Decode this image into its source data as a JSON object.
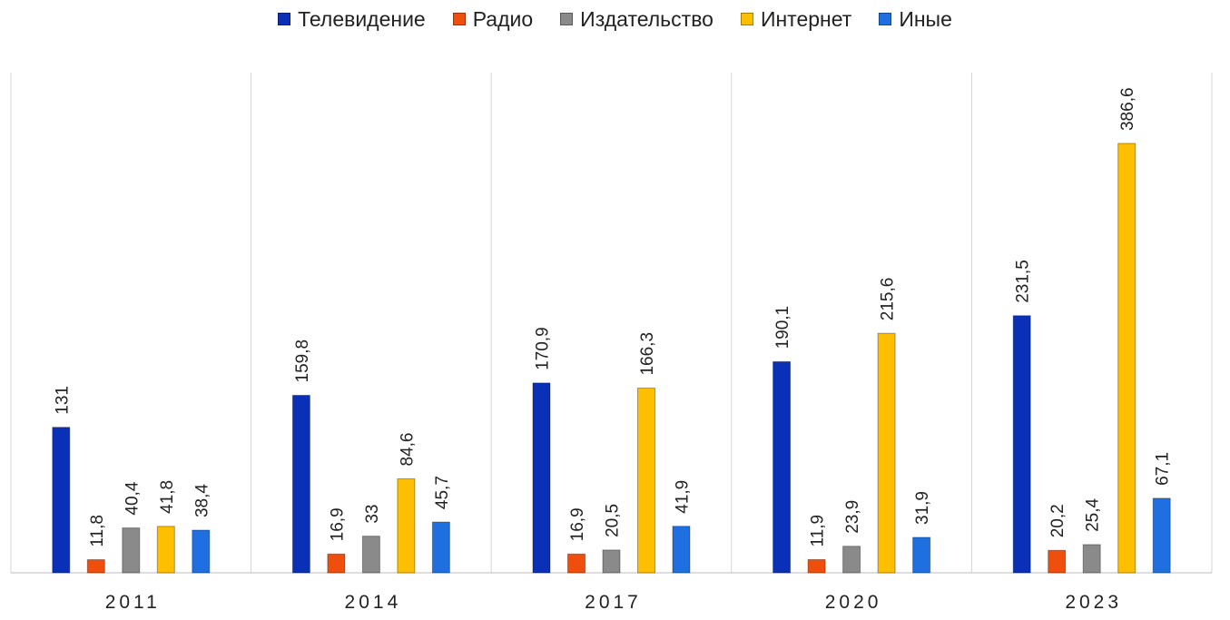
{
  "chart_data": {
    "type": "bar",
    "categories": [
      "2011",
      "2014",
      "2017",
      "2020",
      "2023"
    ],
    "series": [
      {
        "name": "Телевидение",
        "color": "#0b30b8",
        "values": [
          131,
          159.8,
          170.9,
          190.1,
          231.5
        ],
        "labels": [
          "131",
          "159,8",
          "170,9",
          "190,1",
          "231,5"
        ]
      },
      {
        "name": "Радио",
        "color": "#f04e0c",
        "values": [
          11.8,
          16.9,
          16.9,
          11.9,
          20.2
        ],
        "labels": [
          "11,8",
          "16,9",
          "16,9",
          "11,9",
          "20,2"
        ]
      },
      {
        "name": "Издательство",
        "color": "#8a8a8a",
        "values": [
          40.4,
          33,
          20.5,
          23.9,
          25.4
        ],
        "labels": [
          "40,4",
          "33",
          "20,5",
          "23,9",
          "25,4"
        ]
      },
      {
        "name": "Интернет",
        "color": "#fdbf00",
        "values": [
          41.8,
          84.6,
          166.3,
          215.6,
          386.6
        ],
        "labels": [
          "41,8",
          "84,6",
          "166,3",
          "215,6",
          "386,6"
        ]
      },
      {
        "name": "Иные",
        "color": "#1f6fe0",
        "values": [
          38.4,
          45.7,
          41.9,
          31.9,
          67.1
        ],
        "labels": [
          "38,4",
          "45,7",
          "41,9",
          "31,9",
          "67,1"
        ]
      }
    ],
    "ylim": [
      0,
      450
    ],
    "grid": false,
    "legend": "top-center"
  }
}
